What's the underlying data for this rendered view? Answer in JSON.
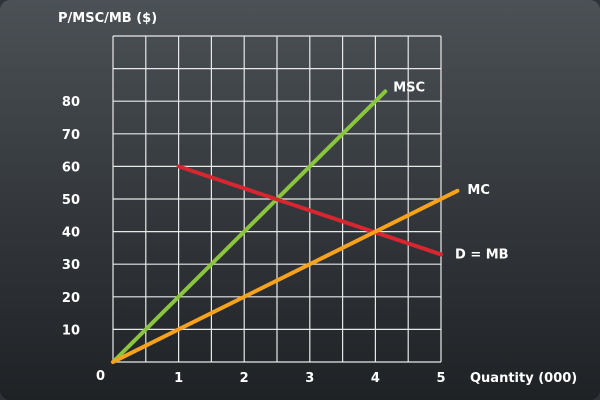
{
  "chart_data": {
    "type": "line",
    "title": "",
    "ylabel": "P/MSC/MB ($)",
    "xlabel": "Quantity (000)",
    "origin_label": "0",
    "xlim": [
      0,
      5
    ],
    "ylim": [
      0,
      100
    ],
    "x_ticks": [
      1,
      2,
      3,
      4,
      5
    ],
    "y_ticks": [
      10,
      20,
      30,
      40,
      50,
      60,
      70,
      80
    ],
    "grid": true,
    "grid_step_x": 0.5,
    "grid_step_y": 10,
    "series": [
      {
        "name": "MSC",
        "color": "#8bc53f",
        "points": [
          [
            0,
            0
          ],
          [
            4.15,
            83
          ]
        ]
      },
      {
        "name": "D = MB",
        "color": "#d6262f",
        "points": [
          [
            1,
            60
          ],
          [
            5,
            33
          ]
        ]
      },
      {
        "name": "MC",
        "color": "#f7a21b",
        "points": [
          [
            0,
            0
          ],
          [
            5.25,
            52.5
          ]
        ]
      }
    ]
  }
}
